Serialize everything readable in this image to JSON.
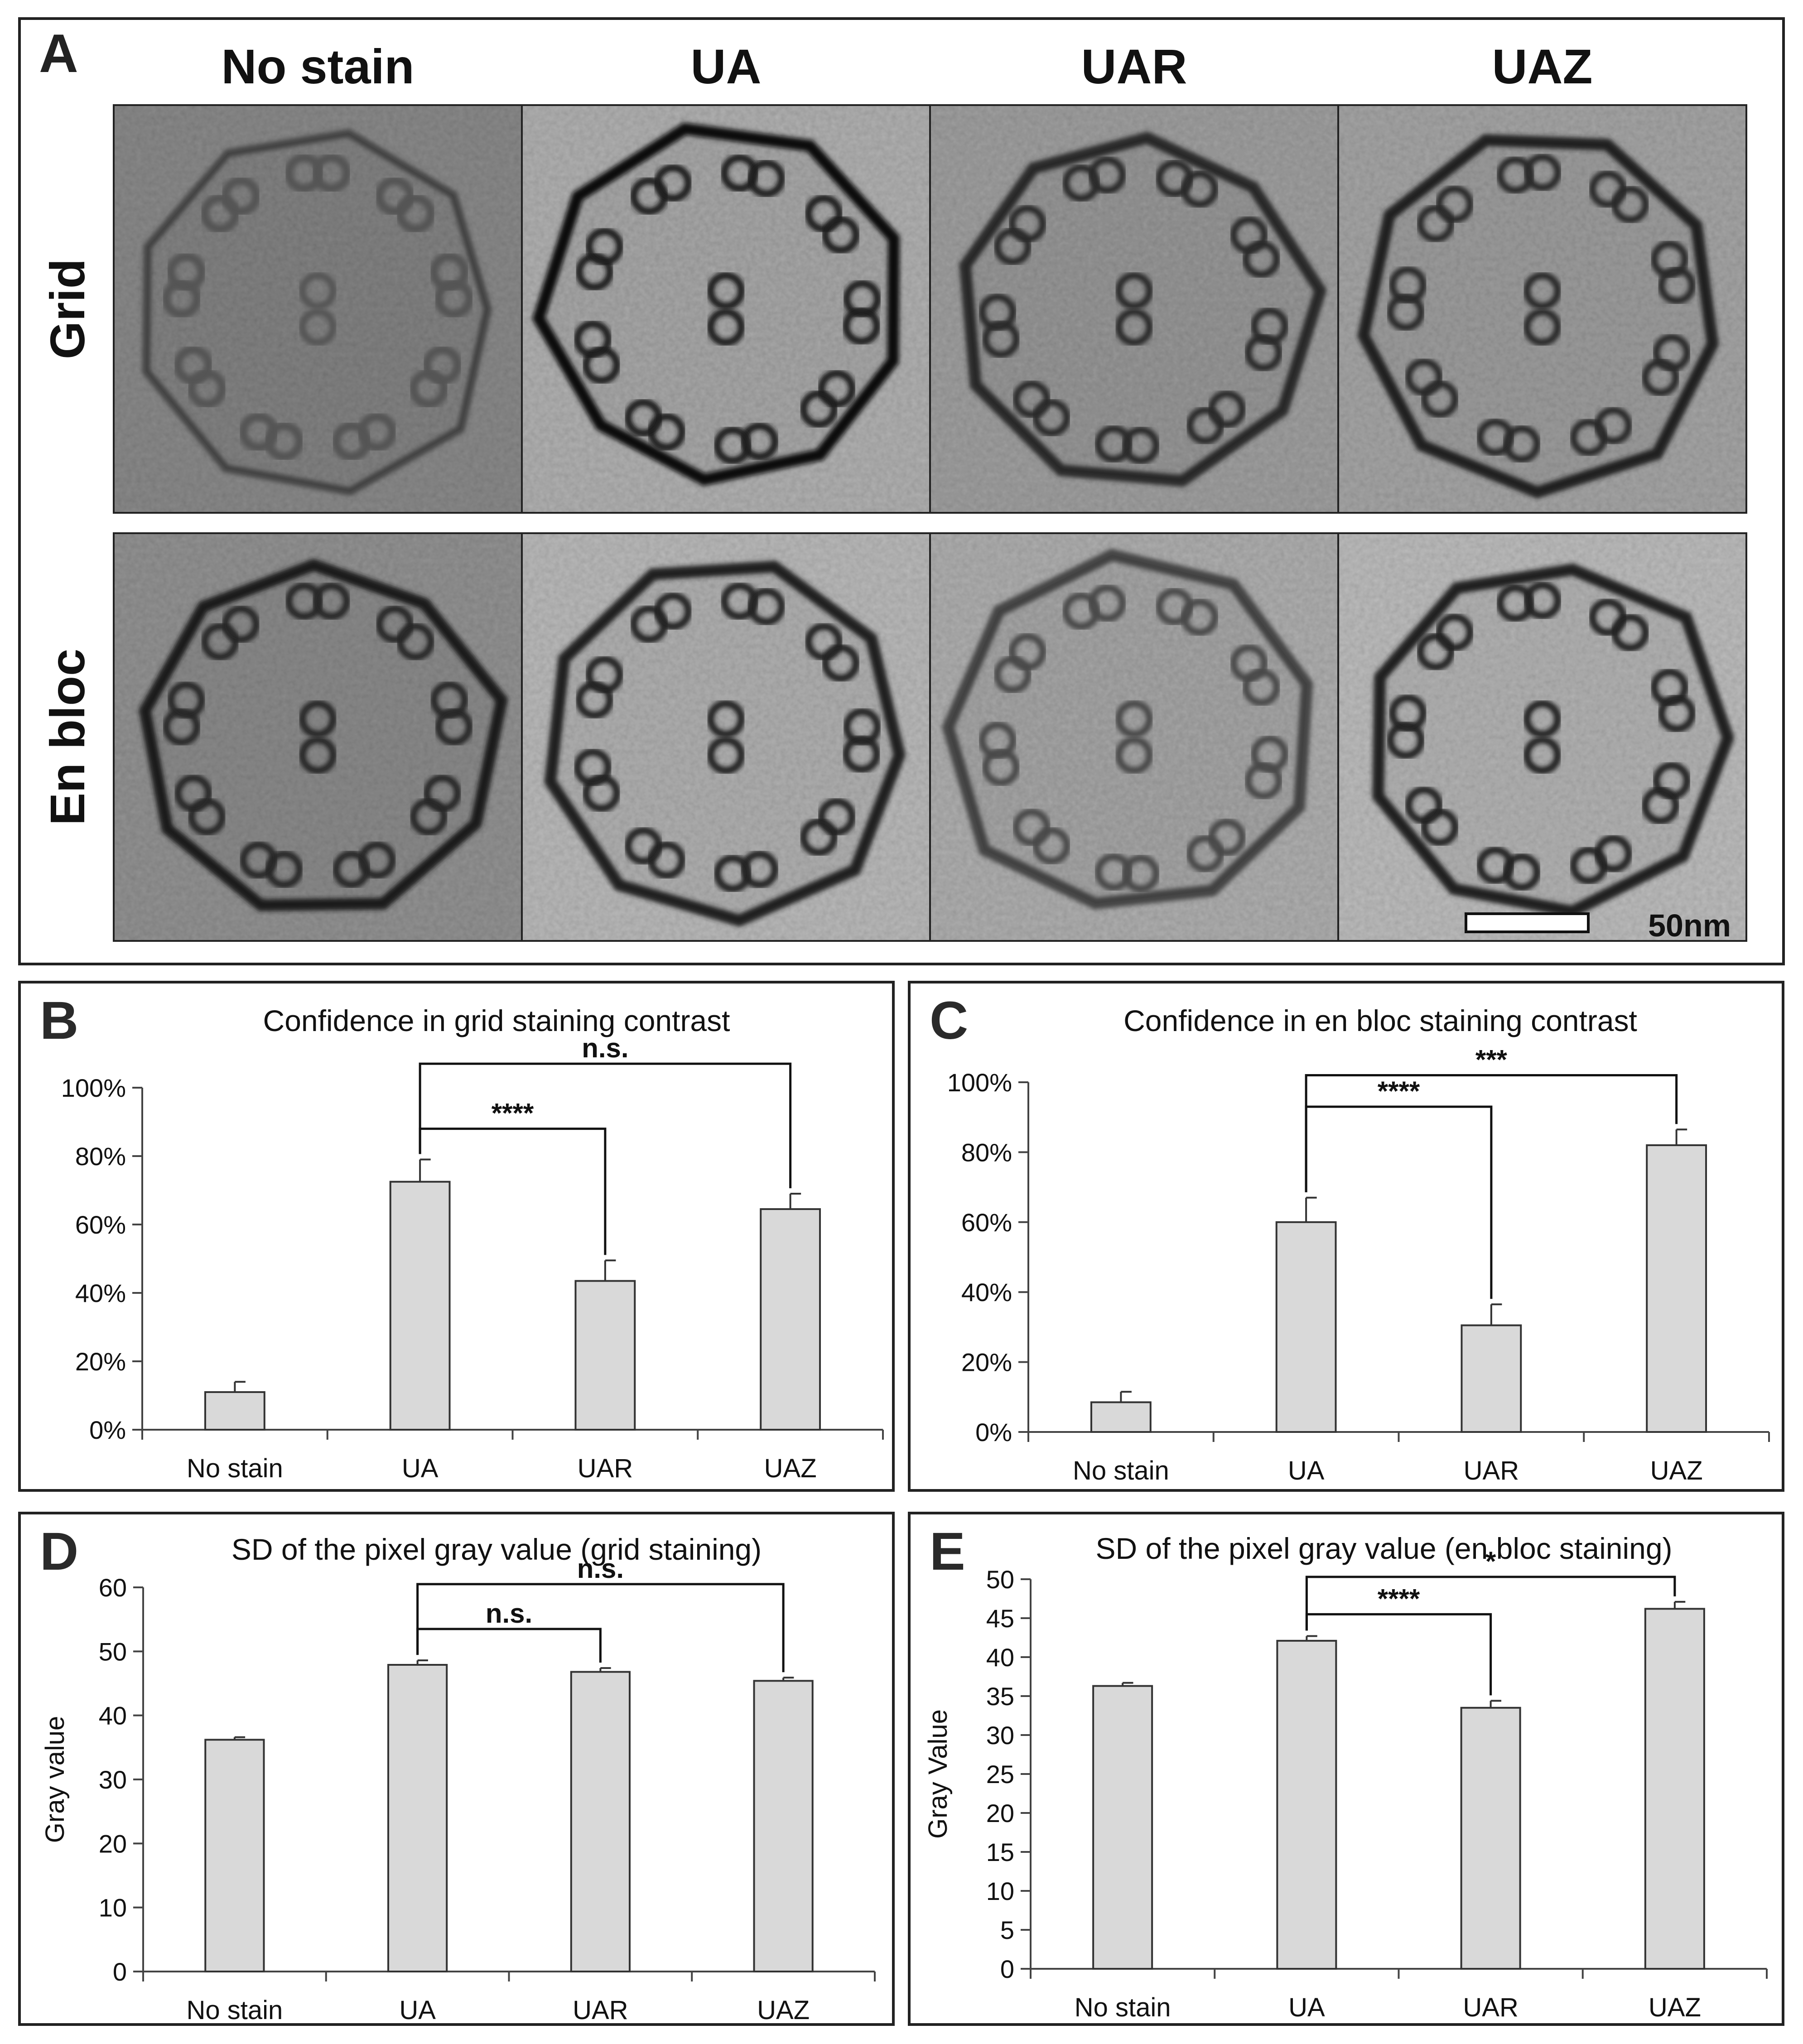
{
  "panelA": {
    "letter": "A",
    "columns": [
      "No stain",
      "UA",
      "UAR",
      "UAZ"
    ],
    "rows": [
      "Grid",
      "En bloc"
    ],
    "scalebar_label": "50nm"
  },
  "chart_data": [
    {
      "panel_letter": "B",
      "type": "bar",
      "title": "Confidence in grid staining contrast",
      "xlabel": "",
      "ylabel": "",
      "categories": [
        "No stain",
        "UA",
        "UAR",
        "UAZ"
      ],
      "values": [
        11,
        72.5,
        43.5,
        64.5
      ],
      "errors": [
        3,
        6.5,
        6,
        4.5
      ],
      "ylim": [
        0,
        100
      ],
      "yticks": [
        "0%",
        "20%",
        "40%",
        "60%",
        "80%",
        "100%"
      ],
      "ytick_values": [
        0,
        20,
        40,
        60,
        80,
        100
      ],
      "significance": [
        {
          "from": "UA",
          "to": "UAR",
          "label": "****",
          "y": 88
        },
        {
          "from": "UA",
          "to": "UAZ",
          "label": "n.s.",
          "y": 107
        }
      ]
    },
    {
      "panel_letter": "C",
      "type": "bar",
      "title": "Confidence in en bloc staining contrast",
      "xlabel": "",
      "ylabel": "",
      "categories": [
        "No stain",
        "UA",
        "UAR",
        "UAZ"
      ],
      "values": [
        8.5,
        60,
        30.5,
        82
      ],
      "errors": [
        3,
        7,
        6,
        4.5
      ],
      "ylim": [
        0,
        100
      ],
      "yticks": [
        "0%",
        "20%",
        "40%",
        "60%",
        "80%",
        "100%"
      ],
      "ytick_values": [
        0,
        20,
        40,
        60,
        80,
        100
      ],
      "significance": [
        {
          "from": "UA",
          "to": "UAR",
          "label": "****",
          "y": 93
        },
        {
          "from": "UA",
          "to": "UAZ",
          "label": "***",
          "y": 102
        }
      ]
    },
    {
      "panel_letter": "D",
      "type": "bar",
      "title": "SD of the pixel gray value (grid staining)",
      "xlabel": "",
      "ylabel": "Gray value",
      "categories": [
        "No stain",
        "UA",
        "UAR",
        "UAZ"
      ],
      "values": [
        36.2,
        47.9,
        46.8,
        45.4
      ],
      "errors": [
        0.4,
        0.7,
        0.6,
        0.5
      ],
      "ylim": [
        0,
        60
      ],
      "yticks": [
        "0",
        "10",
        "20",
        "30",
        "40",
        "50",
        "60"
      ],
      "ytick_values": [
        0,
        10,
        20,
        30,
        40,
        50,
        60
      ],
      "significance": [
        {
          "from": "UA",
          "to": "UAR",
          "label": "n.s.",
          "y": 53.5
        },
        {
          "from": "UA",
          "to": "UAZ",
          "label": "n.s.",
          "y": 60.5
        }
      ]
    },
    {
      "panel_letter": "E",
      "type": "bar",
      "title": "SD of the pixel gray value (en bloc staining)",
      "xlabel": "",
      "ylabel": "Gray Value",
      "categories": [
        "No stain",
        "UA",
        "UAR",
        "UAZ"
      ],
      "values": [
        36.3,
        42.1,
        33.5,
        46.2
      ],
      "errors": [
        0.4,
        0.6,
        0.9,
        0.9
      ],
      "ylim": [
        0,
        50
      ],
      "yticks": [
        "0",
        "5",
        "10",
        "15",
        "20",
        "25",
        "30",
        "35",
        "40",
        "45",
        "50"
      ],
      "ytick_values": [
        0,
        5,
        10,
        15,
        20,
        25,
        30,
        35,
        40,
        45,
        50
      ],
      "significance": [
        {
          "from": "UA",
          "to": "UAR",
          "label": "****",
          "y": 45.5
        },
        {
          "from": "UA",
          "to": "UAZ",
          "label": "*",
          "y": 50.3
        }
      ]
    }
  ]
}
